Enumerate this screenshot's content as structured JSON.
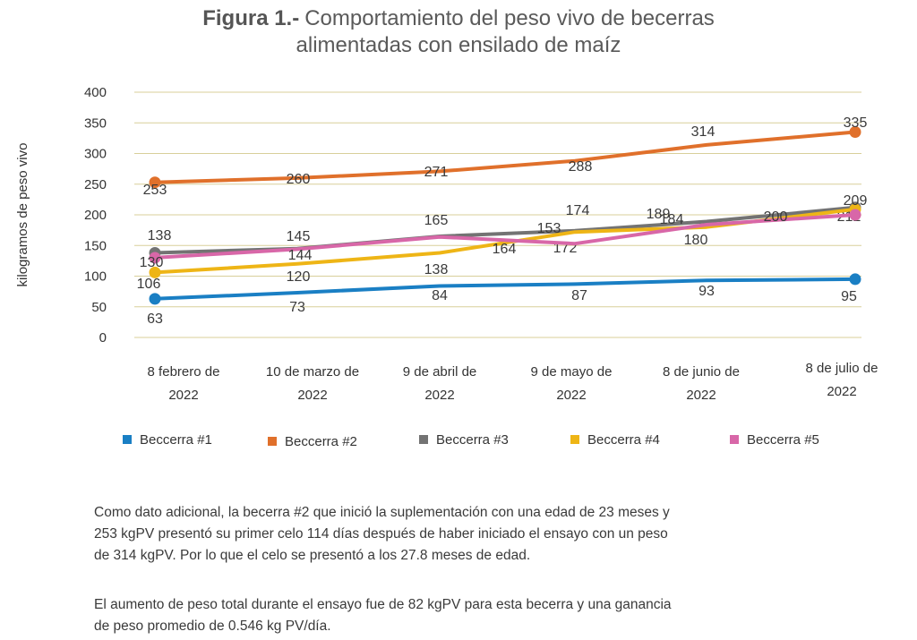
{
  "figure": {
    "label": "Figura 1.-",
    "title_line1": "Comportamiento del peso vivo de becerras",
    "title_line2": "alimentadas con ensilado de maíz"
  },
  "chart_data": {
    "type": "line",
    "ylabel": "kilogramos de peso vivo",
    "ylim": [
      0,
      400
    ],
    "yticks": [
      0,
      50,
      100,
      150,
      200,
      250,
      300,
      350,
      400
    ],
    "categories": [
      [
        "8 febrero de",
        "2022"
      ],
      [
        "10 de marzo de",
        "2022"
      ],
      [
        "9 de abril de",
        "2022"
      ],
      [
        "9 de mayo de",
        "2022"
      ],
      [
        "8 de junio de",
        "2022"
      ],
      [
        "8 de julio de",
        "2022"
      ]
    ],
    "grid": true,
    "legend_position": "bottom",
    "series": [
      {
        "name": "Beccerra #1",
        "color": "#1a7fc4",
        "values": [
          63,
          73,
          84,
          87,
          93,
          95
        ]
      },
      {
        "name": "Beccerra #2",
        "color": "#e0702b",
        "values": [
          253,
          260,
          271,
          288,
          314,
          335
        ]
      },
      {
        "name": "Beccerra #3",
        "color": "#737373",
        "values": [
          138,
          145,
          165,
          174,
          189,
          212
        ]
      },
      {
        "name": "Beccerra #4",
        "color": "#eeb516",
        "values": [
          106,
          120,
          138,
          172,
          180,
          209
        ]
      },
      {
        "name": "Beccerra #5",
        "color": "#d867a8",
        "values": [
          130,
          144,
          164,
          153,
          184,
          200
        ]
      }
    ]
  },
  "notes": {
    "p1_line1": "Como dato adicional, la becerra #2 que inició la suplementación con una edad de 23 meses y",
    "p1_line2": "253 kgPV presentó su primer celo 114 días después de haber iniciado el ensayo con un peso",
    "p1_line3": "de 314 kgPV. Por lo que el celo se presentó a los 27.8 meses de edad.",
    "p2_line1": "El aumento de peso total durante el ensayo fue de 82 kgPV para esta becerra y una ganancia",
    "p2_line2": "de peso promedio de 0.546 kg PV/día."
  }
}
